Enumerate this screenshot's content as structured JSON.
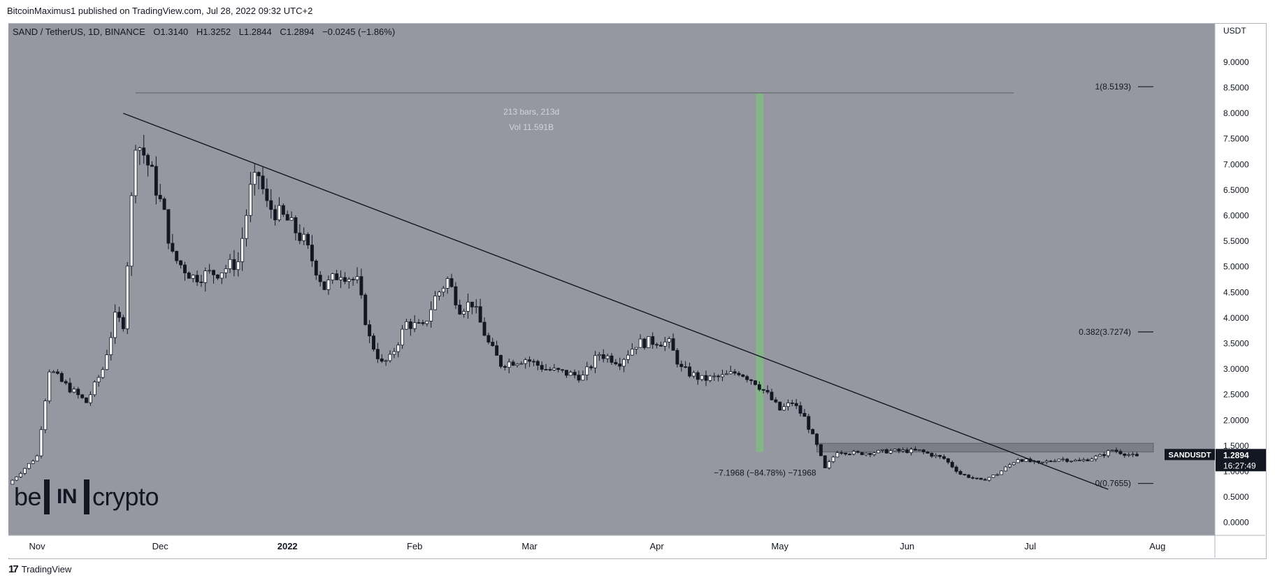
{
  "header": {
    "publisher": "BitcoinMaximus1 published on TradingView.com, Jul 28, 2022 09:32 UTC+2"
  },
  "legend": {
    "symbol": "SAND / TetherUS, 1D, BINANCE",
    "open_label": "O",
    "open": "1.3140",
    "high_label": "H",
    "high": "1.3252",
    "low_label": "L",
    "low": "1.2844",
    "close_label": "C",
    "close": "1.2894",
    "change": "−0.0245 (−1.86%)"
  },
  "brand": {
    "pre": "be",
    "box": "IN",
    "post": "crypto"
  },
  "footer": {
    "logo": "17",
    "label": "TradingView"
  },
  "chart_data": {
    "type": "candlestick",
    "currency": "USDT",
    "ylim": [
      -0.25,
      9.75
    ],
    "y_ticks": [
      "0.0000",
      "0.5000",
      "1.0000",
      "1.5000",
      "2.0000",
      "2.5000",
      "3.0000",
      "3.5000",
      "4.0000",
      "4.5000",
      "5.0000",
      "5.5000",
      "6.0000",
      "6.5000",
      "7.0000",
      "7.5000",
      "8.0000",
      "8.5000",
      "9.0000"
    ],
    "x_range": [
      "2021-10-25",
      "2022-08-15"
    ],
    "x_ticks": [
      {
        "label": "Nov",
        "date": "2021-11-01"
      },
      {
        "label": "Dec",
        "date": "2021-12-01"
      },
      {
        "label": "2022",
        "date": "2022-01-01"
      },
      {
        "label": "Feb",
        "date": "2022-02-01"
      },
      {
        "label": "Mar",
        "date": "2022-03-01"
      },
      {
        "label": "Apr",
        "date": "2022-04-01"
      },
      {
        "label": "May",
        "date": "2022-05-01"
      },
      {
        "label": "Jun",
        "date": "2022-06-01"
      },
      {
        "label": "Jul",
        "date": "2022-07-01"
      },
      {
        "label": "Aug",
        "date": "2022-08-01"
      }
    ],
    "price_path": [
      [
        "2021-10-25",
        0.75
      ],
      [
        "2021-11-01",
        1.3
      ],
      [
        "2021-11-04",
        3.0
      ],
      [
        "2021-11-07",
        2.75
      ],
      [
        "2021-11-13",
        2.35
      ],
      [
        "2021-11-17",
        3.0
      ],
      [
        "2021-11-20",
        4.0
      ],
      [
        "2021-11-22",
        3.9
      ],
      [
        "2021-11-25",
        7.5
      ],
      [
        "2021-11-27",
        7.2
      ],
      [
        "2021-11-29",
        6.8
      ],
      [
        "2021-12-02",
        6.0
      ],
      [
        "2021-12-04",
        5.2
      ],
      [
        "2021-12-09",
        4.8
      ],
      [
        "2021-12-15",
        4.9
      ],
      [
        "2021-12-20",
        5.1
      ],
      [
        "2021-12-23",
        6.5
      ],
      [
        "2021-12-25",
        6.8
      ],
      [
        "2021-12-27",
        6.2
      ],
      [
        "2022-01-01",
        5.9
      ],
      [
        "2022-01-05",
        5.5
      ],
      [
        "2022-01-10",
        4.6
      ],
      [
        "2022-01-14",
        4.9
      ],
      [
        "2022-01-18",
        4.7
      ],
      [
        "2022-01-21",
        3.6
      ],
      [
        "2022-01-24",
        3.1
      ],
      [
        "2022-01-26",
        3.2
      ],
      [
        "2022-01-30",
        3.9
      ],
      [
        "2022-02-03",
        3.8
      ],
      [
        "2022-02-06",
        4.4
      ],
      [
        "2022-02-09",
        4.75
      ],
      [
        "2022-02-12",
        4.2
      ],
      [
        "2022-02-15",
        4.3
      ],
      [
        "2022-02-19",
        3.5
      ],
      [
        "2022-02-22",
        3.1
      ],
      [
        "2022-02-28",
        3.2
      ],
      [
        "2022-03-05",
        3.0
      ],
      [
        "2022-03-14",
        2.85
      ],
      [
        "2022-03-18",
        3.3
      ],
      [
        "2022-03-23",
        3.15
      ],
      [
        "2022-03-27",
        3.5
      ],
      [
        "2022-04-01",
        3.55
      ],
      [
        "2022-04-04",
        3.5
      ],
      [
        "2022-04-07",
        3.0
      ],
      [
        "2022-04-12",
        2.8
      ],
      [
        "2022-04-17",
        2.85
      ],
      [
        "2022-04-21",
        2.95
      ],
      [
        "2022-04-25",
        2.75
      ],
      [
        "2022-04-28",
        2.5
      ],
      [
        "2022-05-01",
        2.2
      ],
      [
        "2022-05-04",
        2.35
      ],
      [
        "2022-05-07",
        2.05
      ],
      [
        "2022-05-10",
        1.5
      ],
      [
        "2022-05-12",
        1.05
      ],
      [
        "2022-05-15",
        1.4
      ],
      [
        "2022-05-20",
        1.35
      ],
      [
        "2022-05-28",
        1.4
      ],
      [
        "2022-06-04",
        1.4
      ],
      [
        "2022-06-10",
        1.25
      ],
      [
        "2022-06-14",
        0.95
      ],
      [
        "2022-06-19",
        0.82
      ],
      [
        "2022-06-23",
        0.95
      ],
      [
        "2022-06-28",
        1.25
      ],
      [
        "2022-07-03",
        1.15
      ],
      [
        "2022-07-08",
        1.25
      ],
      [
        "2022-07-13",
        1.2
      ],
      [
        "2022-07-18",
        1.3
      ],
      [
        "2022-07-21",
        1.42
      ],
      [
        "2022-07-24",
        1.35
      ],
      [
        "2022-07-27",
        1.28
      ]
    ],
    "price_label": {
      "name": "SANDUSDT",
      "value": "1.2894",
      "countdown": "16:27:49",
      "y": 1.2894
    },
    "price_axis_mark": "1.2894",
    "trendline": {
      "from": [
        "2021-11-22",
        8.0
      ],
      "to": [
        "2022-07-20",
        0.65
      ]
    },
    "resistance_zone": {
      "from": "2022-05-10",
      "to": "2022-07-31",
      "y0": 1.38,
      "y1": 1.55
    },
    "fib_levels": [
      {
        "label": "1(8.5193)",
        "value": 8.5193
      },
      {
        "label": "0.382(3.7274)",
        "value": 3.7274
      },
      {
        "label": "0(0.7655)",
        "value": 0.7655
      }
    ],
    "measure": {
      "start_date": "2021-11-25",
      "end_date": "2022-04-26",
      "top": 8.4,
      "top_end": "2022-06-27",
      "bottom": 1.38,
      "bars_text": "213 bars, 213d",
      "vol_text": "Vol 11.591B",
      "change_text": "−7.1968 (−84.78%) −71968"
    },
    "watermark_grid": false
  }
}
